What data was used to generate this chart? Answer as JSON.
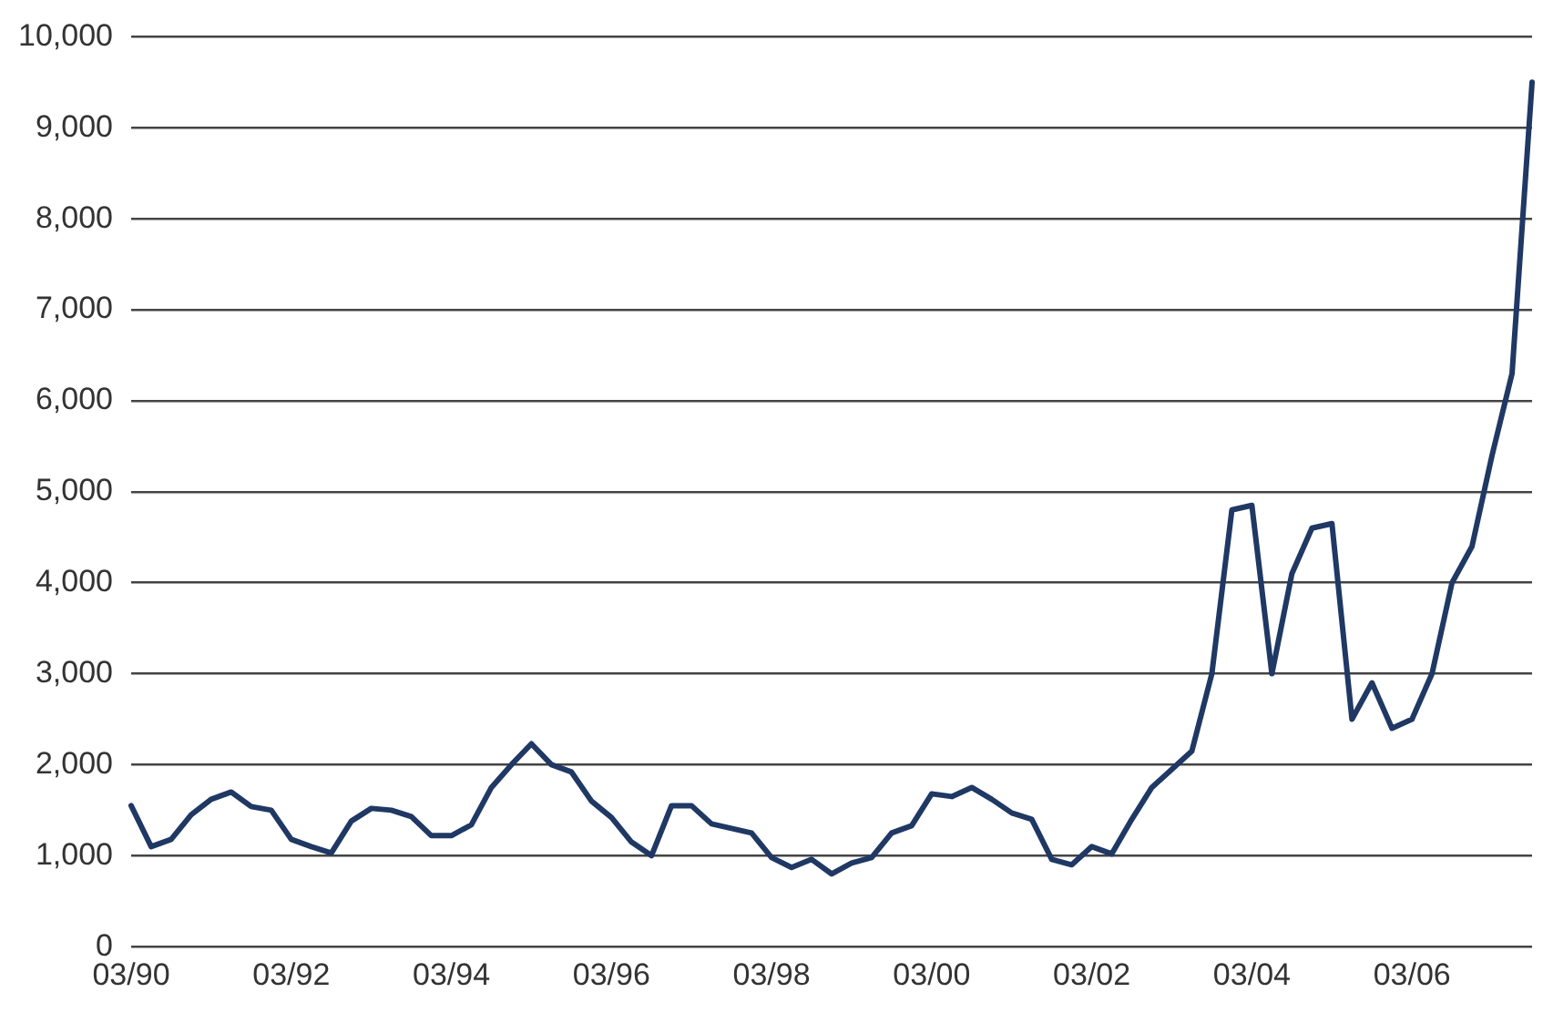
{
  "chart_data": {
    "type": "line",
    "categories": [
      "03/90",
      null,
      null,
      null,
      null,
      null,
      null,
      null,
      "03/92",
      null,
      null,
      null,
      null,
      null,
      null,
      null,
      "03/94",
      null,
      null,
      null,
      null,
      null,
      null,
      null,
      "03/96",
      null,
      null,
      null,
      null,
      null,
      null,
      null,
      "03/98",
      null,
      null,
      null,
      null,
      null,
      null,
      null,
      "03/00",
      null,
      null,
      null,
      null,
      null,
      null,
      null,
      "03/02",
      null,
      null,
      null,
      null,
      null,
      null,
      null,
      "03/04",
      null,
      null,
      null,
      null,
      null,
      null,
      null,
      "03/06",
      null,
      null,
      null,
      null,
      null,
      null
    ],
    "series": [
      {
        "color": "#1f3864",
        "values": [
          1550,
          1100,
          1180,
          1450,
          1620,
          1700,
          1540,
          1500,
          1180,
          1100,
          1030,
          1380,
          1520,
          1500,
          1430,
          1220,
          1220,
          1340,
          1750,
          2000,
          2230,
          2000,
          1920,
          1600,
          1420,
          1150,
          1000,
          1550,
          1550,
          1350,
          1300,
          1250,
          980,
          870,
          960,
          800,
          920,
          980,
          1250,
          1330,
          1680,
          1650,
          1750,
          1620,
          1470,
          1400,
          960,
          900,
          1100,
          1020,
          1400,
          1750,
          1950,
          2150,
          3000,
          4800,
          4850,
          3000,
          4100,
          4600,
          4650,
          2500,
          2900,
          2400,
          2500,
          3000,
          4000,
          4400,
          5400,
          6300,
          9500
        ]
      }
    ],
    "ylim": [
      0,
      10000
    ],
    "yticks": [
      0,
      {
        "value": 1000,
        "label": "1,000"
      },
      {
        "value": 2000,
        "label": "2,000"
      },
      {
        "value": 3000,
        "label": "3,000"
      },
      {
        "value": 4000,
        "label": "4,000"
      },
      {
        "value": 5000,
        "label": "5,000"
      },
      {
        "value": 6000,
        "label": "6,000"
      },
      {
        "value": 7000,
        "label": "7,000"
      },
      {
        "value": 8000,
        "label": "8,000"
      },
      {
        "value": 9000,
        "label": "9,000"
      },
      {
        "value": 10000,
        "label": "10,000"
      }
    ],
    "grid": "y",
    "legend": false,
    "marker": "none",
    "line_style": "solid"
  }
}
